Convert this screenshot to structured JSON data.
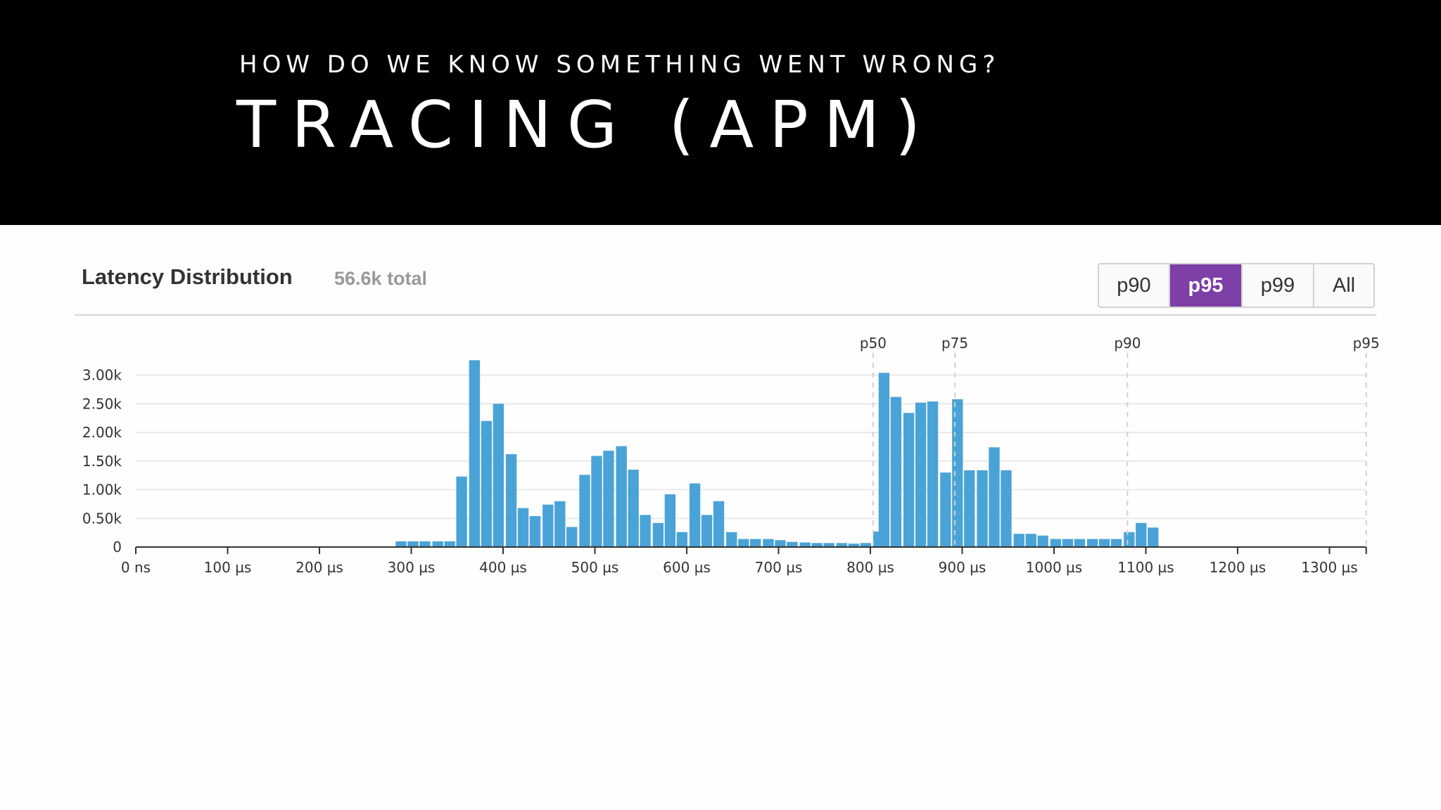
{
  "slide": {
    "kicker": "HOW DO WE KNOW SOMETHING WENT WRONG?",
    "title": "TRACING (APM)"
  },
  "panel": {
    "title": "Latency Distribution",
    "total": "56.6k total",
    "buttons": [
      {
        "label": "p90",
        "active": false
      },
      {
        "label": "p95",
        "active": true
      },
      {
        "label": "p99",
        "active": false
      },
      {
        "label": "All",
        "active": false
      }
    ]
  },
  "colors": {
    "bar": "#4aa3d6",
    "active_button": "#7e3fa7",
    "banner": "#000000"
  },
  "chart_data": {
    "type": "bar",
    "title": "",
    "xlabel": "",
    "ylabel": "",
    "x_unit": "µs",
    "bin_width": 13.3,
    "ylim": [
      0,
      3200
    ],
    "xlim": [
      0,
      1340
    ],
    "y_ticks": [
      {
        "value": 0,
        "label": "0"
      },
      {
        "value": 500,
        "label": "0.50k"
      },
      {
        "value": 1000,
        "label": "1.00k"
      },
      {
        "value": 1500,
        "label": "1.50k"
      },
      {
        "value": 2000,
        "label": "2.00k"
      },
      {
        "value": 2500,
        "label": "2.50k"
      },
      {
        "value": 3000,
        "label": "3.00k"
      }
    ],
    "x_ticks": [
      {
        "value": 0,
        "label": "0 ns"
      },
      {
        "value": 100,
        "label": "100 µs"
      },
      {
        "value": 200,
        "label": "200 µs"
      },
      {
        "value": 300,
        "label": "300 µs"
      },
      {
        "value": 400,
        "label": "400 µs"
      },
      {
        "value": 500,
        "label": "500 µs"
      },
      {
        "value": 600,
        "label": "600 µs"
      },
      {
        "value": 700,
        "label": "700 µs"
      },
      {
        "value": 800,
        "label": "800 µs"
      },
      {
        "value": 900,
        "label": "900 µs"
      },
      {
        "value": 1000,
        "label": "1000 µs"
      },
      {
        "value": 1100,
        "label": "1100 µs"
      },
      {
        "value": 1200,
        "label": "1200 µs"
      },
      {
        "value": 1300,
        "label": "1300 µs"
      }
    ],
    "percentiles": [
      {
        "label": "p50",
        "value": 803
      },
      {
        "label": "p75",
        "value": 892
      },
      {
        "label": "p90",
        "value": 1080
      },
      {
        "label": "p95",
        "value": 1340
      }
    ],
    "bins": [
      {
        "x": 283,
        "y": 100
      },
      {
        "x": 296,
        "y": 100
      },
      {
        "x": 309,
        "y": 100
      },
      {
        "x": 323,
        "y": 100
      },
      {
        "x": 336,
        "y": 100
      },
      {
        "x": 349,
        "y": 1230
      },
      {
        "x": 363,
        "y": 3260
      },
      {
        "x": 376,
        "y": 2200
      },
      {
        "x": 389,
        "y": 2500
      },
      {
        "x": 403,
        "y": 1620
      },
      {
        "x": 416,
        "y": 680
      },
      {
        "x": 429,
        "y": 540
      },
      {
        "x": 443,
        "y": 740
      },
      {
        "x": 456,
        "y": 800
      },
      {
        "x": 469,
        "y": 350
      },
      {
        "x": 483,
        "y": 1260
      },
      {
        "x": 496,
        "y": 1590
      },
      {
        "x": 509,
        "y": 1680
      },
      {
        "x": 523,
        "y": 1760
      },
      {
        "x": 536,
        "y": 1350
      },
      {
        "x": 549,
        "y": 560
      },
      {
        "x": 563,
        "y": 420
      },
      {
        "x": 576,
        "y": 920
      },
      {
        "x": 589,
        "y": 260
      },
      {
        "x": 603,
        "y": 1110
      },
      {
        "x": 616,
        "y": 560
      },
      {
        "x": 629,
        "y": 800
      },
      {
        "x": 643,
        "y": 260
      },
      {
        "x": 656,
        "y": 140
      },
      {
        "x": 669,
        "y": 140
      },
      {
        "x": 683,
        "y": 140
      },
      {
        "x": 696,
        "y": 120
      },
      {
        "x": 709,
        "y": 90
      },
      {
        "x": 723,
        "y": 80
      },
      {
        "x": 736,
        "y": 70
      },
      {
        "x": 749,
        "y": 70
      },
      {
        "x": 763,
        "y": 70
      },
      {
        "x": 776,
        "y": 60
      },
      {
        "x": 789,
        "y": 70
      },
      {
        "x": 803,
        "y": 270
      },
      {
        "x": 809,
        "y": 3040
      },
      {
        "x": 822,
        "y": 2620
      },
      {
        "x": 836,
        "y": 2340
      },
      {
        "x": 849,
        "y": 2520
      },
      {
        "x": 862,
        "y": 2540
      },
      {
        "x": 876,
        "y": 1300
      },
      {
        "x": 889,
        "y": 2580
      },
      {
        "x": 902,
        "y": 1340
      },
      {
        "x": 916,
        "y": 1340
      },
      {
        "x": 929,
        "y": 1740
      },
      {
        "x": 942,
        "y": 1340
      },
      {
        "x": 956,
        "y": 230
      },
      {
        "x": 969,
        "y": 230
      },
      {
        "x": 982,
        "y": 200
      },
      {
        "x": 996,
        "y": 140
      },
      {
        "x": 1009,
        "y": 140
      },
      {
        "x": 1022,
        "y": 140
      },
      {
        "x": 1036,
        "y": 140
      },
      {
        "x": 1049,
        "y": 140
      },
      {
        "x": 1062,
        "y": 140
      },
      {
        "x": 1076,
        "y": 260
      },
      {
        "x": 1089,
        "y": 420
      },
      {
        "x": 1102,
        "y": 340
      }
    ]
  }
}
